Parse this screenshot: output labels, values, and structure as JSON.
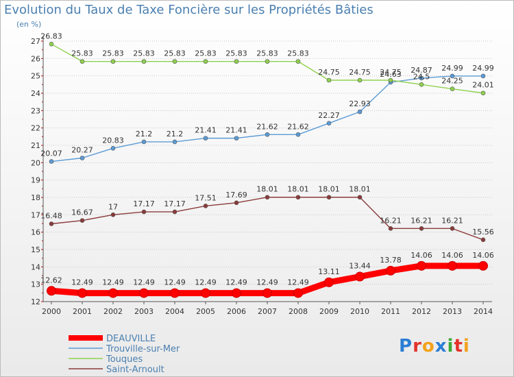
{
  "title": "Evolution du Taux de Taxe Foncière sur les Propriétés Bâties",
  "unit": "(en %)",
  "brand": {
    "text": "Proxiti",
    "letters": [
      "P",
      "r",
      "o",
      "x",
      "i",
      "t",
      "i"
    ],
    "colors": [
      "#2a7fd4",
      "#e2322a",
      "#f3a21b",
      "#2a7fd4",
      "#3aa935",
      "#e2322a",
      "#f3a21b"
    ]
  },
  "chart_data": {
    "type": "line",
    "title": "Evolution du Taux de Taxe Foncière sur les Propriétés Bâties",
    "ylabel": "(en %)",
    "xlabel": "",
    "x": [
      2000,
      2001,
      2002,
      2003,
      2004,
      2005,
      2006,
      2007,
      2008,
      2009,
      2010,
      2011,
      2012,
      2013,
      2014
    ],
    "ylim": [
      12,
      27
    ],
    "yticks": [
      12,
      13,
      14,
      15,
      16,
      17,
      18,
      19,
      20,
      21,
      22,
      23,
      24,
      25,
      26,
      27
    ],
    "grid": "horizontal",
    "series": [
      {
        "name": "DEAUVILLE",
        "color": "#ff0000",
        "values": [
          12.62,
          12.49,
          12.49,
          12.49,
          12.49,
          12.49,
          12.49,
          12.49,
          12.49,
          13.11,
          13.44,
          13.78,
          14.06,
          14.06,
          14.06
        ],
        "labels": [
          "12.62",
          "12.49",
          "12.49",
          "12.49",
          "12.49",
          "12.49",
          "12.49",
          "12.49",
          "12.49",
          "13.11",
          "13.44",
          "13.78",
          "14.06",
          "14.06",
          "14.06"
        ]
      },
      {
        "name": "Trouville-sur-Mer",
        "color": "#5b9bd5",
        "values": [
          20.07,
          20.27,
          20.83,
          21.2,
          21.2,
          21.41,
          21.41,
          21.62,
          21.62,
          22.27,
          22.93,
          24.63,
          24.87,
          24.99,
          24.99
        ],
        "labels": [
          "20.07",
          "20.27",
          "20.83",
          "21.2",
          "21.2",
          "21.41",
          "21.41",
          "21.62",
          "21.62",
          "22.27",
          "22.93",
          "24.63",
          "24.87",
          "24.99",
          "24.99"
        ]
      },
      {
        "name": "Touques",
        "color": "#8fd14f",
        "values": [
          26.83,
          25.83,
          25.83,
          25.83,
          25.83,
          25.83,
          25.83,
          25.83,
          25.83,
          24.75,
          24.75,
          24.75,
          24.5,
          24.25,
          24.01
        ],
        "labels": [
          "26.83",
          "25.83",
          "25.83",
          "25.83",
          "25.83",
          "25.83",
          "25.83",
          "25.83",
          "25.83",
          "24.75",
          "24.75",
          "24.75",
          "24.5",
          "24.25",
          "24.01"
        ]
      },
      {
        "name": "Saint-Arnoult",
        "color": "#8b3a3a",
        "values": [
          16.48,
          16.67,
          17,
          17.17,
          17.17,
          17.51,
          17.69,
          18.01,
          18.01,
          18.01,
          18.01,
          16.21,
          16.21,
          16.21,
          15.56
        ],
        "labels": [
          "16.48",
          "16.67",
          "17",
          "17.17",
          "17.17",
          "17.51",
          "17.69",
          "18.01",
          "18.01",
          "18.01",
          "18.01",
          "16.21",
          "16.21",
          "16.21",
          "15.56"
        ]
      }
    ],
    "legend": "bottom-left"
  }
}
